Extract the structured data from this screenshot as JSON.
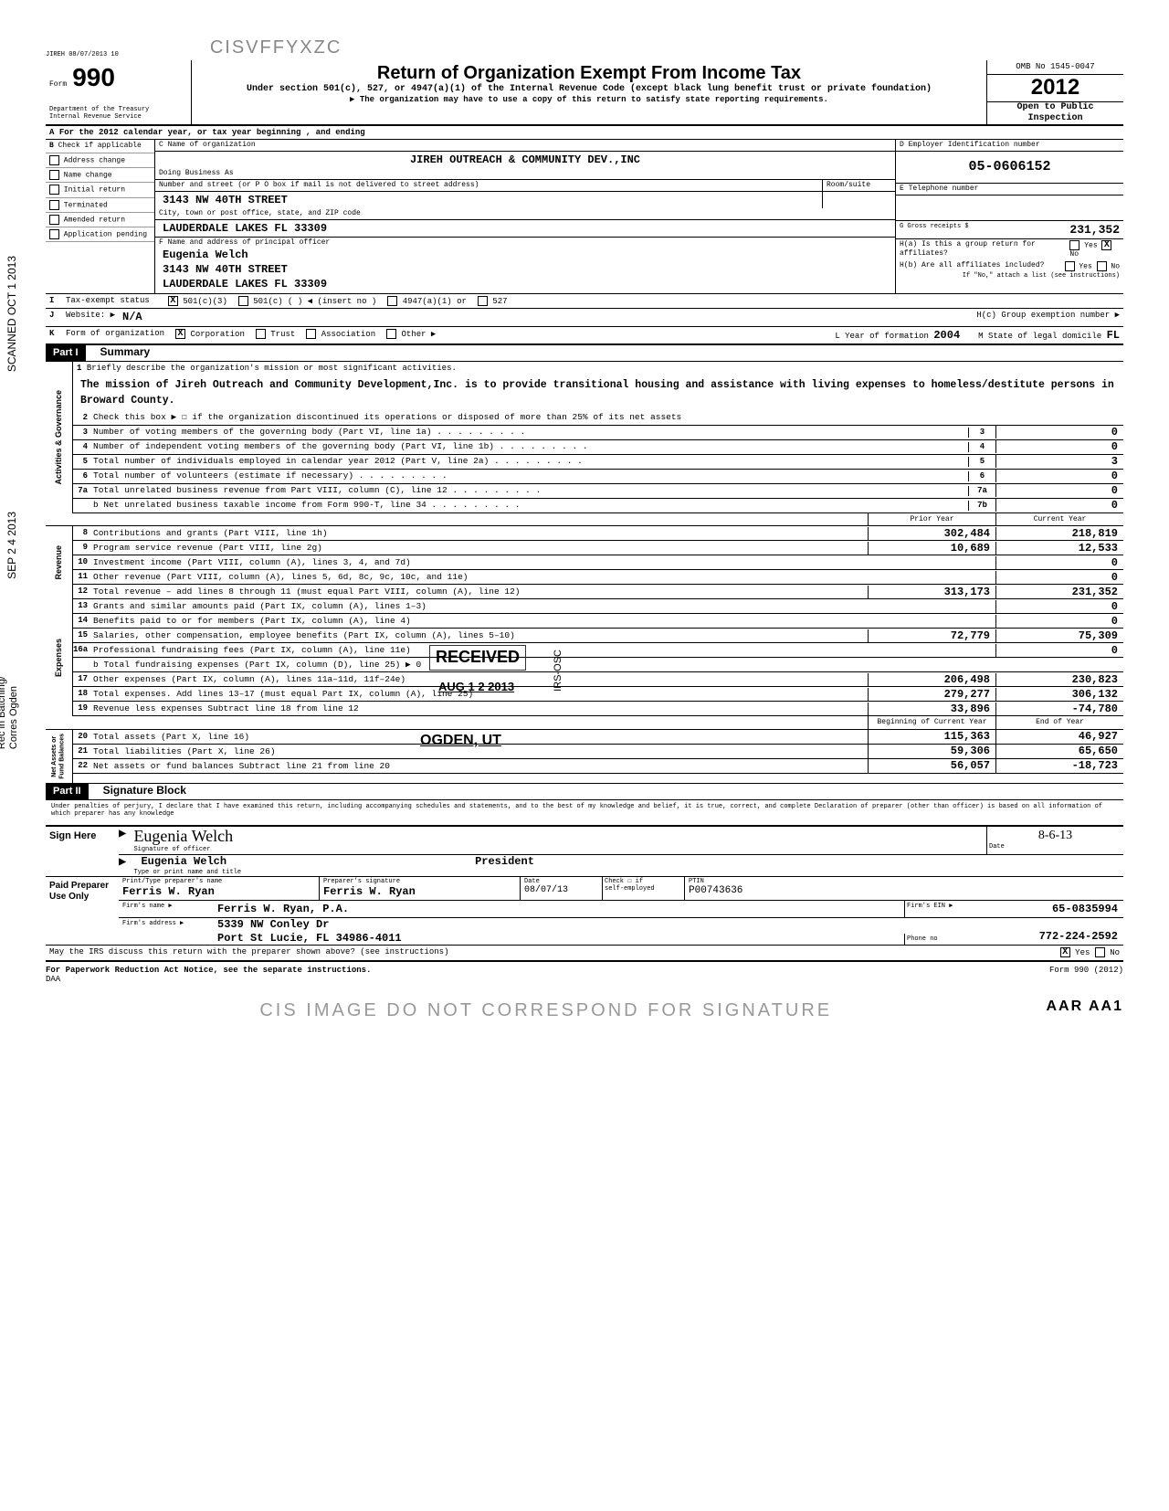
{
  "timestamp": "JIREH 08/07/2013 10",
  "watermark_top": "CISVFFYXZC",
  "form": {
    "number": "990",
    "form_label": "Form",
    "title": "Return of Organization Exempt From Income Tax",
    "subtitle": "Under section 501(c), 527, or 4947(a)(1) of the Internal Revenue Code (except black lung benefit trust or private foundation)",
    "note": "▶ The organization may have to use a copy of this return to satisfy state reporting requirements.",
    "dept": "Department of the Treasury",
    "irs": "Internal Revenue Service",
    "omb": "OMB No  1545-0047",
    "year": "2012",
    "open": "Open to Public",
    "inspection": "Inspection"
  },
  "line_a": "For the 2012 calendar year, or tax year beginning                                    , and ending",
  "section_b": {
    "header": "Check if applicable",
    "items": [
      "Address change",
      "Name change",
      "Initial return",
      "Terminated",
      "Amended return",
      "Application pending"
    ]
  },
  "org": {
    "name_label": "C  Name of organization",
    "name": "JIREH OUTREACH & COMMUNITY DEV.,INC",
    "dba_label": "Doing Business As",
    "street_label": "Number and street (or P O  box if mail is not delivered to street address)",
    "room_label": "Room/suite",
    "street": "3143 NW 40TH STREET",
    "city_label": "City, town or post office, state, and ZIP code",
    "city": "LAUDERDALE LAKES          FL  33309",
    "officer_label": "F  Name and address of principal officer",
    "officer_name": "Eugenia Welch",
    "officer_street": "3143 NW 40TH STREET",
    "officer_city": "LAUDERDALE LAKES          FL  33309"
  },
  "box_d": {
    "label": "D    Employer Identification number",
    "value": "05-0606152"
  },
  "box_e": {
    "label": "E    Telephone number",
    "value": ""
  },
  "box_g": {
    "label": "G  Gross receipts $",
    "value": "231,352"
  },
  "box_h": {
    "ha": "H(a)  Is this a group return for affiliates?",
    "hb": "H(b)  Are all affiliates included?",
    "hb_note": "If \"No,\" attach a list  (see instructions)",
    "hc": "H(c)   Group exemption number ▶",
    "yes": "Yes",
    "no": "No"
  },
  "status_row": {
    "i": "Tax-exempt status",
    "opts": [
      "501(c)(3)",
      "501(c)  (          ) ◀ (insert no )",
      "4947(a)(1) or",
      "527"
    ],
    "checked": "X"
  },
  "website": {
    "label": "Website: ▶",
    "value": "N/A"
  },
  "form_org": {
    "label": "Form of organization",
    "opts": [
      "Corporation",
      "Trust",
      "Association",
      "Other ▶"
    ],
    "checked": "X",
    "l_label": "L   Year of formation",
    "l_value": "2004",
    "m_label": "M   State of legal domicile",
    "m_value": "FL"
  },
  "part1": {
    "label": "Part I",
    "title": "Summary",
    "line1_label": "Briefly describe the organization's mission or most significant activities.",
    "mission": "The mission of Jireh Outreach and Community Development,Inc. is to provide transitional housing and assistance with living expenses to homeless/destitute persons in Broward County.",
    "line2": "Check this box ▶ ☐ if the organization discontinued its operations or disposed of more than 25% of its net assets",
    "gov_label": "Activities & Governance",
    "rev_label": "Revenue",
    "exp_label": "Expenses",
    "net_label": "Net Assets or\nFund Balances",
    "lines_single": [
      {
        "n": "3",
        "d": "Number of voting members of the governing body (Part VI, line 1a)",
        "box": "3",
        "v": "0"
      },
      {
        "n": "4",
        "d": "Number of independent voting members of the governing body (Part VI, line 1b)",
        "box": "4",
        "v": "0"
      },
      {
        "n": "5",
        "d": "Total number of individuals employed in calendar year 2012 (Part V, line 2a)",
        "box": "5",
        "v": "3"
      },
      {
        "n": "6",
        "d": "Total number of volunteers (estimate if necessary)",
        "box": "6",
        "v": "0"
      },
      {
        "n": "7a",
        "d": "Total unrelated business revenue from Part VIII, column (C), line 12",
        "box": "7a",
        "v": "0"
      },
      {
        "n": "",
        "d": "b Net unrelated business taxable income from Form 990-T, line 34",
        "box": "7b",
        "v": "0"
      }
    ],
    "col_headers": {
      "prior": "Prior Year",
      "current": "Current Year"
    },
    "lines_double": [
      {
        "n": "8",
        "d": "Contributions and grants (Part VIII, line 1h)",
        "p": "302,484",
        "c": "218,819"
      },
      {
        "n": "9",
        "d": "Program service revenue (Part VIII, line 2g)",
        "p": "10,689",
        "c": "12,533"
      },
      {
        "n": "10",
        "d": "Investment income (Part VIII, column (A), lines 3, 4, and 7d)",
        "p": "",
        "c": "0"
      },
      {
        "n": "11",
        "d": "Other revenue (Part VIII, column (A), lines 5, 6d, 8c, 9c, 10c, and 11e)",
        "p": "",
        "c": "0"
      },
      {
        "n": "12",
        "d": "Total revenue – add lines 8 through 11 (must equal Part VIII, column (A), line 12)",
        "p": "313,173",
        "c": "231,352"
      },
      {
        "n": "13",
        "d": "Grants and similar amounts paid (Part IX, column (A), lines 1–3)",
        "p": "",
        "c": "0"
      },
      {
        "n": "14",
        "d": "Benefits paid to or for members (Part IX, column (A), line 4)",
        "p": "",
        "c": "0"
      },
      {
        "n": "15",
        "d": "Salaries, other compensation, employee benefits (Part IX, column (A), lines 5–10)",
        "p": "72,779",
        "c": "75,309"
      },
      {
        "n": "16a",
        "d": "Professional fundraising fees (Part IX, column (A), line 11e)",
        "p": "",
        "c": "0"
      },
      {
        "n": "",
        "d": "b Total fundraising expenses (Part IX, column (D), line 25) ▶                     0",
        "p": "",
        "c": "",
        "noval": true
      },
      {
        "n": "17",
        "d": "Other expenses (Part IX, column (A), lines 11a–11d, 11f–24e)",
        "p": "206,498",
        "c": "230,823"
      },
      {
        "n": "18",
        "d": "Total expenses. Add lines 13–17 (must equal Part IX, column (A), line 25)",
        "p": "279,277",
        "c": "306,132"
      },
      {
        "n": "19",
        "d": "Revenue less expenses  Subtract line 18 from line 12",
        "p": "33,896",
        "c": "-74,780"
      }
    ],
    "net_headers": {
      "begin": "Beginning of Current Year",
      "end": "End of Year"
    },
    "net_lines": [
      {
        "n": "20",
        "d": "Total assets (Part X, line 16)",
        "p": "115,363",
        "c": "46,927"
      },
      {
        "n": "21",
        "d": "Total liabilities (Part X, line 26)",
        "p": "59,306",
        "c": "65,650"
      },
      {
        "n": "22",
        "d": "Net assets or fund balances  Subtract line 21 from line 20",
        "p": "56,057",
        "c": "-18,723"
      }
    ]
  },
  "stamps": {
    "received": "RECEIVED",
    "date": "AUG 1 2 2013",
    "ogden": "OGDEN, UT",
    "irs_osc": "IRS-OSC"
  },
  "left_stamps": {
    "scanned": "SCANNED OCT 1 2013",
    "date2": "SEP 2 4 2013",
    "rec": "Rec in Batching/\nCorres Ogden"
  },
  "part2": {
    "label": "Part II",
    "title": "Signature Block",
    "perjury": "Under penalties of perjury, I declare that I have examined this return, including accompanying schedules and statements, and to the best of my knowledge and belief, it is true, correct, and complete  Declaration of preparer (other than officer) is based on all information of which preparer has any knowledge"
  },
  "sign": {
    "here": "Sign Here",
    "sig_label": "Signature of officer",
    "sig_cursive": "Eugenia Welch",
    "name": "Eugenia Welch",
    "title": "President",
    "name_label": "Type or print name and title",
    "date_label": "Date",
    "date": "8-6-13"
  },
  "preparer": {
    "label": "Paid Preparer Use Only",
    "name_label": "Print/Type preparer's name",
    "name": "Ferris W. Ryan",
    "sig_label": "Preparer's signature",
    "sig": "Ferris W. Ryan",
    "date_label": "Date",
    "date": "08/07/13",
    "self_label": "self-employed",
    "check_label": "Check ☐ if",
    "ptin_label": "PTIN",
    "ptin": "P00743636",
    "firm_label": "Firm's name    ▶",
    "firm": "Ferris W. Ryan, P.A.",
    "ein_label": "Firm's EIN ▶",
    "ein": "65-0835994",
    "addr_label": "Firm's address   ▶",
    "addr1": "5339 NW Conley Dr",
    "addr2": "Port St Lucie, FL    34986-4011",
    "phone_label": "Phone no",
    "phone": "772-224-2592"
  },
  "footer": {
    "discuss": "May the IRS discuss this return with the preparer shown above? (see instructions)",
    "yes": "Yes",
    "no": "No",
    "pra": "For Paperwork Reduction Act Notice, see the separate instructions.",
    "daa": "DAA",
    "form": "Form 990 (2012)"
  },
  "watermark_bottom": "CIS IMAGE DO NOT CORRESPOND FOR SIGNATURE",
  "page_stamp": "AAR AA1"
}
